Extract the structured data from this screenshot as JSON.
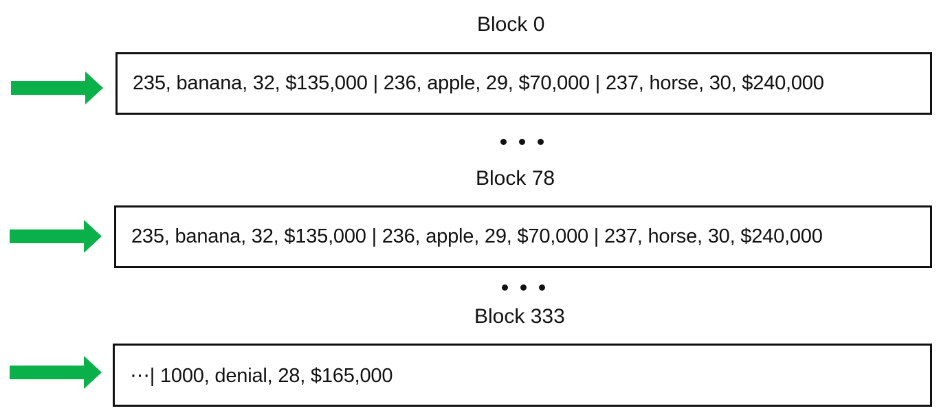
{
  "blocks": [
    {
      "title": "Block 0",
      "content": "235, banana, 32, $135,000 | 236, apple, 29, $70,000 | 237, horse, 30, $240,000"
    },
    {
      "title": "Block 78",
      "content": "235, banana, 32, $135,000 | 236, apple, 29, $70,000 | 237, horse, 30, $240,000"
    },
    {
      "title": "Block 333",
      "content": "⋯| 1000, denial, 28, $165,000"
    }
  ],
  "arrow_color": "#0ab14b",
  "border_color": "#111111",
  "ellipsis_icon": "horizontal-ellipsis",
  "arrow_icon": "right-arrow"
}
